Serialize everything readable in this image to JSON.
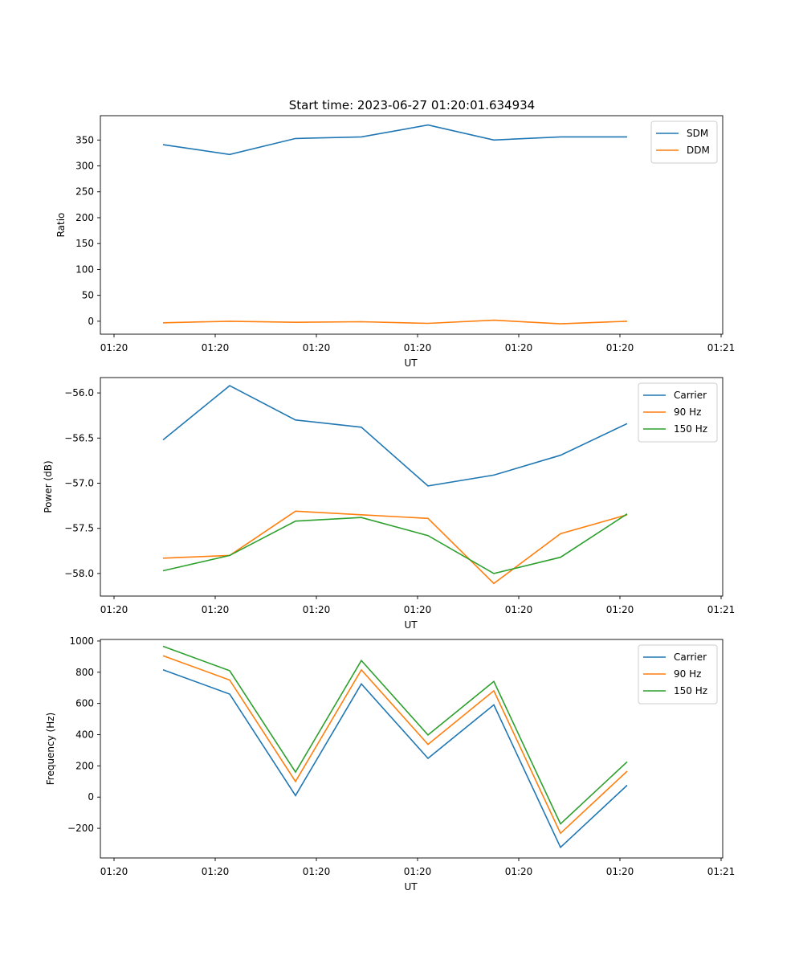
{
  "figure_title": "Start time: 2023-06-27 01:20:01.634934",
  "colors": {
    "blue": "#1f77b4",
    "orange": "#ff7f0e",
    "green": "#2ca02c"
  },
  "chart_data": [
    {
      "type": "line",
      "title": "Start time: 2023-06-27 01:20:01.634934",
      "xlabel": "UT",
      "ylabel": "Ratio",
      "x_ticks": [
        "01:20",
        "01:20",
        "01:20",
        "01:20",
        "01:20",
        "01:20",
        "01:20",
        "01:21"
      ],
      "x_points": 8,
      "yticks": [
        0,
        50,
        100,
        150,
        200,
        250,
        300,
        350
      ],
      "ylim": [
        -25,
        397
      ],
      "legend": "top-right",
      "series": [
        {
          "name": "SDM",
          "color": "#1f77b4",
          "values": [
            341,
            322,
            353,
            356,
            379,
            350,
            356,
            356
          ]
        },
        {
          "name": "DDM",
          "color": "#ff7f0e",
          "values": [
            -3,
            0,
            -2,
            -1,
            -4,
            2,
            -5,
            0
          ]
        }
      ]
    },
    {
      "type": "line",
      "xlabel": "UT",
      "ylabel": "Power (dB)",
      "x_ticks": [
        "01:20",
        "01:20",
        "01:20",
        "01:20",
        "01:20",
        "01:20",
        "01:20",
        "01:21"
      ],
      "x_points": 8,
      "yticks": [
        -58.0,
        -57.5,
        -57.0,
        -56.5,
        -56.0
      ],
      "ylim": [
        -58.25,
        -55.83
      ],
      "legend": "top-right",
      "series": [
        {
          "name": "Carrier",
          "color": "#1f77b4",
          "values": [
            -56.52,
            -55.92,
            -56.3,
            -56.38,
            -57.03,
            -56.91,
            -56.69,
            -56.34
          ]
        },
        {
          "name": "90 Hz",
          "color": "#ff7f0e",
          "values": [
            -57.83,
            -57.8,
            -57.31,
            -57.35,
            -57.39,
            -58.11,
            -57.56,
            -57.35
          ]
        },
        {
          "name": "150 Hz",
          "color": "#2ca02c",
          "values": [
            -57.97,
            -57.8,
            -57.42,
            -57.38,
            -57.58,
            -58.0,
            -57.82,
            -57.34
          ]
        }
      ]
    },
    {
      "type": "line",
      "xlabel": "UT",
      "ylabel": "Frequency (Hz)",
      "x_ticks": [
        "01:20",
        "01:20",
        "01:20",
        "01:20",
        "01:20",
        "01:20",
        "01:20",
        "01:21"
      ],
      "x_points": 8,
      "yticks": [
        -200,
        0,
        200,
        400,
        600,
        800,
        1000
      ],
      "ylim": [
        -390,
        1010
      ],
      "legend": "top-right",
      "series": [
        {
          "name": "Carrier",
          "color": "#1f77b4",
          "values": [
            816,
            660,
            10,
            725,
            248,
            591,
            -322,
            76
          ]
        },
        {
          "name": "90 Hz",
          "color": "#ff7f0e",
          "values": [
            906,
            750,
            100,
            815,
            338,
            681,
            -232,
            166
          ]
        },
        {
          "name": "150 Hz",
          "color": "#2ca02c",
          "values": [
            966,
            810,
            160,
            875,
            398,
            741,
            -172,
            226
          ]
        }
      ]
    }
  ]
}
